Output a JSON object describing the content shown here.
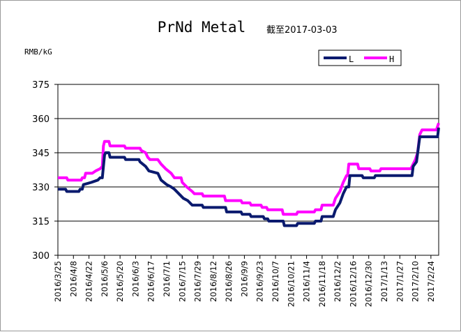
{
  "chart_data": {
    "type": "line",
    "title": "PrNd Metal",
    "subtitle": "截至2017-03-03",
    "ylabel": "RMB/kG",
    "ylim": [
      300,
      375
    ],
    "yticks": [
      300,
      315,
      330,
      345,
      360,
      375
    ],
    "grid": "horizontal",
    "legend_position": "top-right",
    "x_ticks": [
      "2016/3/25",
      "2016/4/8",
      "2016/4/22",
      "2016/5/6",
      "2016/5/20",
      "2016/6/3",
      "2016/6/17",
      "2016/7/1",
      "2016/7/15",
      "2016/7/29",
      "2016/8/12",
      "2016/8/26",
      "2016/9/9",
      "2016/9/23",
      "2016/10/7",
      "2016/10/21",
      "2016/11/4",
      "2016/11/18",
      "2016/12/2",
      "2016/12/16",
      "2016/12/30",
      "2017/1/13",
      "2017/1/27",
      "2017/2/10",
      "2017/2/24"
    ],
    "x_range": [
      "2016-03-25",
      "2017-03-03"
    ],
    "series": [
      {
        "name": "L",
        "color": "#0a1a6e",
        "points": [
          [
            "2016-03-25",
            329
          ],
          [
            "2016-04-01",
            329
          ],
          [
            "2016-04-02",
            328
          ],
          [
            "2016-04-13",
            328
          ],
          [
            "2016-04-14",
            329
          ],
          [
            "2016-04-16",
            329
          ],
          [
            "2016-04-17",
            331
          ],
          [
            "2016-04-24",
            332
          ],
          [
            "2016-04-30",
            333
          ],
          [
            "2016-05-02",
            334
          ],
          [
            "2016-05-04",
            334
          ],
          [
            "2016-05-06",
            344
          ],
          [
            "2016-05-07",
            345
          ],
          [
            "2016-05-10",
            345
          ],
          [
            "2016-05-11",
            343
          ],
          [
            "2016-05-24",
            343
          ],
          [
            "2016-05-25",
            342
          ],
          [
            "2016-06-06",
            342
          ],
          [
            "2016-06-07",
            341
          ],
          [
            "2016-06-12",
            339
          ],
          [
            "2016-06-15",
            337
          ],
          [
            "2016-06-23",
            336
          ],
          [
            "2016-06-26",
            333
          ],
          [
            "2016-07-01",
            331
          ],
          [
            "2016-07-05",
            330
          ],
          [
            "2016-07-08",
            329
          ],
          [
            "2016-07-12",
            327
          ],
          [
            "2016-07-16",
            325
          ],
          [
            "2016-07-20",
            324
          ],
          [
            "2016-07-24",
            322
          ],
          [
            "2016-08-02",
            322
          ],
          [
            "2016-08-03",
            321
          ],
          [
            "2016-08-23",
            321
          ],
          [
            "2016-08-24",
            319
          ],
          [
            "2016-09-06",
            319
          ],
          [
            "2016-09-07",
            318
          ],
          [
            "2016-09-14",
            318
          ],
          [
            "2016-09-15",
            317
          ],
          [
            "2016-09-26",
            317
          ],
          [
            "2016-09-27",
            316
          ],
          [
            "2016-09-30",
            316
          ],
          [
            "2016-10-01",
            315
          ],
          [
            "2016-10-14",
            315
          ],
          [
            "2016-10-15",
            313
          ],
          [
            "2016-10-26",
            313
          ],
          [
            "2016-10-27",
            314
          ],
          [
            "2016-11-11",
            314
          ],
          [
            "2016-11-12",
            315
          ],
          [
            "2016-11-17",
            315
          ],
          [
            "2016-11-18",
            317
          ],
          [
            "2016-11-28",
            317
          ],
          [
            "2016-11-30",
            320
          ],
          [
            "2016-12-04",
            323
          ],
          [
            "2016-12-07",
            327
          ],
          [
            "2016-12-08",
            328
          ],
          [
            "2016-12-10",
            330
          ],
          [
            "2016-12-12",
            330
          ],
          [
            "2016-12-13",
            335
          ],
          [
            "2016-12-24",
            335
          ],
          [
            "2016-12-25",
            334
          ],
          [
            "2017-01-04",
            334
          ],
          [
            "2017-01-05",
            335
          ],
          [
            "2017-02-04",
            335
          ],
          [
            "2017-02-07",
            335
          ],
          [
            "2017-02-08",
            339
          ],
          [
            "2017-02-11",
            341
          ],
          [
            "2017-02-14",
            352
          ],
          [
            "2017-02-28",
            352
          ],
          [
            "2017-03-02",
            352
          ],
          [
            "2017-03-03",
            356
          ]
        ]
      },
      {
        "name": "H",
        "color": "#ff00ff",
        "points": [
          [
            "2016-03-25",
            334
          ],
          [
            "2016-04-02",
            334
          ],
          [
            "2016-04-03",
            333
          ],
          [
            "2016-04-15",
            333
          ],
          [
            "2016-04-16",
            334
          ],
          [
            "2016-04-18",
            334
          ],
          [
            "2016-04-19",
            336
          ],
          [
            "2016-04-25",
            336
          ],
          [
            "2016-04-28",
            337
          ],
          [
            "2016-05-02",
            338
          ],
          [
            "2016-05-04",
            339
          ],
          [
            "2016-05-05",
            348
          ],
          [
            "2016-05-06",
            350
          ],
          [
            "2016-05-10",
            350
          ],
          [
            "2016-05-11",
            348
          ],
          [
            "2016-05-24",
            348
          ],
          [
            "2016-05-25",
            347
          ],
          [
            "2016-06-07",
            347
          ],
          [
            "2016-06-08",
            346
          ],
          [
            "2016-06-12",
            345
          ],
          [
            "2016-06-14",
            343
          ],
          [
            "2016-06-16",
            342
          ],
          [
            "2016-06-23",
            342
          ],
          [
            "2016-06-26",
            340
          ],
          [
            "2016-06-30",
            338
          ],
          [
            "2016-07-05",
            336
          ],
          [
            "2016-07-08",
            334
          ],
          [
            "2016-07-14",
            334
          ],
          [
            "2016-07-15",
            332
          ],
          [
            "2016-07-19",
            330
          ],
          [
            "2016-07-24",
            328
          ],
          [
            "2016-07-26",
            327
          ],
          [
            "2016-08-02",
            327
          ],
          [
            "2016-08-03",
            326
          ],
          [
            "2016-08-22",
            326
          ],
          [
            "2016-08-23",
            324
          ],
          [
            "2016-09-06",
            324
          ],
          [
            "2016-09-07",
            323
          ],
          [
            "2016-09-14",
            323
          ],
          [
            "2016-09-15",
            322
          ],
          [
            "2016-09-24",
            322
          ],
          [
            "2016-09-25",
            321
          ],
          [
            "2016-09-29",
            321
          ],
          [
            "2016-09-30",
            320
          ],
          [
            "2016-10-13",
            320
          ],
          [
            "2016-10-14",
            318
          ],
          [
            "2016-10-26",
            318
          ],
          [
            "2016-10-27",
            319
          ],
          [
            "2016-11-11",
            319
          ],
          [
            "2016-11-12",
            320
          ],
          [
            "2016-11-17",
            320
          ],
          [
            "2016-11-18",
            322
          ],
          [
            "2016-11-28",
            322
          ],
          [
            "2016-11-30",
            325
          ],
          [
            "2016-12-04",
            328
          ],
          [
            "2016-12-07",
            332
          ],
          [
            "2016-12-08",
            333
          ],
          [
            "2016-12-10",
            335
          ],
          [
            "2016-12-11",
            335
          ],
          [
            "2016-12-12",
            340
          ],
          [
            "2016-12-20",
            340
          ],
          [
            "2016-12-21",
            338
          ],
          [
            "2016-12-31",
            338
          ],
          [
            "2017-01-01",
            337
          ],
          [
            "2017-01-09",
            337
          ],
          [
            "2017-01-10",
            338
          ],
          [
            "2017-02-06",
            338
          ],
          [
            "2017-02-07",
            339
          ],
          [
            "2017-02-10",
            342
          ],
          [
            "2017-02-12",
            345
          ],
          [
            "2017-02-14",
            353
          ],
          [
            "2017-02-16",
            355
          ],
          [
            "2017-03-01",
            355
          ],
          [
            "2017-03-03",
            358
          ]
        ]
      }
    ]
  }
}
